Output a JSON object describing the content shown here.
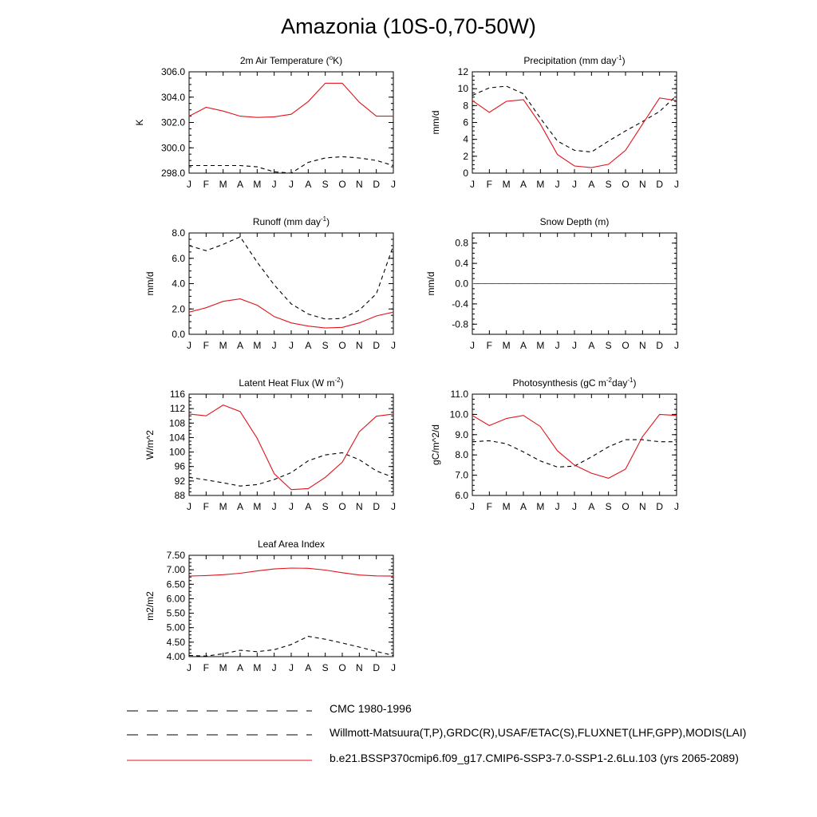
{
  "title": "Amazonia (10S-0,70-50W)",
  "colors": {
    "model": "#e0141c",
    "obs": "#000000",
    "obs_alt": "#3a55d8"
  },
  "legend": [
    {
      "label": "CMC 1980-1996",
      "style": "dashed",
      "color": "#000000"
    },
    {
      "label": "Willmott-Matsuura(T,P),GRDC(R),USAF/ETAC(S),FLUXNET(LHF,GPP),MODIS(LAI)",
      "style": "dashed",
      "color": "#000000"
    },
    {
      "label": "b.e21.BSSP370cmip6.f09_g17.CMIP6-SSP3-7.0-SSP1-2.6Lu.103 (yrs 2065-2089)",
      "style": "solid",
      "color": "#e0141c"
    }
  ],
  "chart_data": [
    {
      "type": "line",
      "title": "2m Air Temperature (°K)",
      "title_parts": [
        "2m Air Temperature (",
        "o",
        "K)"
      ],
      "ylabel": "K",
      "ylim": [
        298.0,
        306.0
      ],
      "yticks": [
        298.0,
        300.0,
        302.0,
        304.0,
        306.0
      ],
      "ytick_labels": [
        "298.0",
        "300.0",
        "302.0",
        "304.0",
        "306.0"
      ],
      "x": [
        "J",
        "F",
        "M",
        "A",
        "M",
        "J",
        "J",
        "A",
        "S",
        "O",
        "N",
        "D",
        "J"
      ],
      "series": [
        {
          "role": "model",
          "values": [
            302.5,
            303.2,
            302.9,
            302.5,
            302.4,
            302.45,
            302.65,
            303.65,
            305.1,
            305.1,
            303.6,
            302.5,
            302.5
          ]
        },
        {
          "role": "obs",
          "values": [
            298.6,
            298.6,
            298.6,
            298.6,
            298.5,
            298.1,
            298.0,
            298.85,
            299.2,
            299.3,
            299.2,
            299.0,
            298.6
          ]
        }
      ]
    },
    {
      "type": "line",
      "title": "Precipitation (mm day-1)",
      "title_parts": [
        "Precipitation (mm day",
        "-1",
        ")"
      ],
      "ylabel": "mm/d",
      "ylim": [
        0,
        12
      ],
      "yticks": [
        0,
        2,
        4,
        6,
        8,
        10,
        12
      ],
      "ytick_labels": [
        "0",
        "2",
        "4",
        "6",
        "8",
        "10",
        "12"
      ],
      "x": [
        "J",
        "F",
        "M",
        "A",
        "M",
        "J",
        "J",
        "A",
        "S",
        "O",
        "N",
        "D",
        "J"
      ],
      "series": [
        {
          "role": "model",
          "values": [
            8.6,
            7.2,
            8.5,
            8.7,
            5.8,
            2.2,
            0.85,
            0.65,
            1.05,
            2.7,
            5.8,
            8.9,
            8.6
          ]
        },
        {
          "role": "obs",
          "values": [
            9.2,
            10.1,
            10.3,
            9.4,
            6.5,
            3.8,
            2.7,
            2.5,
            3.8,
            5.0,
            6.1,
            7.3,
            9.2
          ]
        }
      ]
    },
    {
      "type": "line",
      "title": "Runoff (mm day-1)",
      "title_parts": [
        "Runoff (mm day",
        "-1",
        ")"
      ],
      "ylabel": "mm/d",
      "ylim": [
        0,
        8
      ],
      "yticks": [
        0,
        2,
        4,
        6,
        8
      ],
      "ytick_labels": [
        "0.0",
        "2.0",
        "4.0",
        "6.0",
        "8.0"
      ],
      "x": [
        "J",
        "F",
        "M",
        "A",
        "M",
        "J",
        "J",
        "A",
        "S",
        "O",
        "N",
        "D",
        "J"
      ],
      "series": [
        {
          "role": "model",
          "values": [
            1.75,
            2.1,
            2.6,
            2.8,
            2.3,
            1.4,
            0.9,
            0.65,
            0.5,
            0.55,
            0.9,
            1.45,
            1.75
          ]
        },
        {
          "role": "obs",
          "values": [
            7.0,
            6.6,
            7.1,
            7.7,
            5.7,
            3.9,
            2.4,
            1.6,
            1.2,
            1.25,
            1.9,
            3.2,
            7.0
          ]
        }
      ]
    },
    {
      "type": "line",
      "title": "Snow Depth (m)",
      "title_parts": [
        "Snow Depth (m)"
      ],
      "ylabel": "mm/d",
      "ylim": [
        -1.0,
        1.0
      ],
      "yticks": [
        -0.8,
        -0.4,
        0.0,
        0.4,
        0.8
      ],
      "ytick_labels": [
        "-0.8",
        "-0.4",
        "0.0",
        "0.4",
        "0.8"
      ],
      "x": [
        "J",
        "F",
        "M",
        "A",
        "M",
        "J",
        "J",
        "A",
        "S",
        "O",
        "N",
        "D",
        "J"
      ],
      "series": [
        {
          "role": "model",
          "values": [
            0,
            0,
            0,
            0,
            0,
            0,
            0,
            0,
            0,
            0,
            0,
            0,
            0
          ]
        },
        {
          "role": "obs_alt",
          "values": [
            0,
            0,
            0,
            0,
            0,
            0,
            0,
            0,
            0,
            0,
            0,
            0,
            0
          ]
        }
      ]
    },
    {
      "type": "line",
      "title": "Latent Heat Flux (W m-2)",
      "title_parts": [
        "Latent Heat Flux (W m",
        "-2",
        ")"
      ],
      "ylabel": "W/m^2",
      "ylim": [
        88,
        116
      ],
      "yticks": [
        88,
        92,
        96,
        100,
        104,
        108,
        112,
        116
      ],
      "ytick_labels": [
        "88",
        "92",
        "96",
        "100",
        "104",
        "108",
        "112",
        "116"
      ],
      "x": [
        "J",
        "F",
        "M",
        "A",
        "M",
        "J",
        "J",
        "A",
        "S",
        "O",
        "N",
        "D",
        "J"
      ],
      "series": [
        {
          "role": "model",
          "values": [
            110.5,
            110.0,
            113.0,
            111.2,
            103.8,
            94.0,
            89.6,
            89.9,
            93.0,
            97.2,
            105.6,
            109.9,
            110.5
          ]
        },
        {
          "role": "obs",
          "values": [
            93.0,
            92.3,
            91.5,
            90.6,
            91.0,
            92.4,
            94.3,
            97.6,
            99.2,
            99.8,
            97.9,
            94.8,
            93.0
          ]
        }
      ]
    },
    {
      "type": "line",
      "title": "Photosynthesis (gC m-2day-1)",
      "title_parts": [
        "Photosynthesis (gC m",
        "-2",
        "day",
        "-1",
        ")"
      ],
      "ylabel": "gC/m^2/d",
      "ylim": [
        6.0,
        11.0
      ],
      "yticks": [
        6.0,
        7.0,
        8.0,
        9.0,
        10.0,
        11.0
      ],
      "ytick_labels": [
        "6.0",
        "7.0",
        "8.0",
        "9.0",
        "10.0",
        "11.0"
      ],
      "x": [
        "J",
        "F",
        "M",
        "A",
        "M",
        "J",
        "J",
        "A",
        "S",
        "O",
        "N",
        "D",
        "J"
      ],
      "series": [
        {
          "role": "model",
          "values": [
            9.95,
            9.45,
            9.8,
            9.95,
            9.4,
            8.2,
            7.5,
            7.1,
            6.85,
            7.3,
            8.9,
            10.0,
            9.95
          ]
        },
        {
          "role": "obs",
          "values": [
            8.65,
            8.7,
            8.55,
            8.15,
            7.7,
            7.4,
            7.45,
            7.9,
            8.4,
            8.75,
            8.75,
            8.65,
            8.65
          ]
        }
      ]
    },
    {
      "type": "line",
      "title": "Leaf Area Index",
      "title_parts": [
        "Leaf Area Index"
      ],
      "ylabel": "m2/m2",
      "ylim": [
        4.0,
        7.5
      ],
      "yticks": [
        4.0,
        4.5,
        5.0,
        5.5,
        6.0,
        6.5,
        7.0,
        7.5
      ],
      "ytick_labels": [
        "4.00",
        "4.50",
        "5.00",
        "5.50",
        "6.00",
        "6.50",
        "7.00",
        "7.50"
      ],
      "x": [
        "J",
        "F",
        "M",
        "A",
        "M",
        "J",
        "J",
        "A",
        "S",
        "O",
        "N",
        "D",
        "J"
      ],
      "series": [
        {
          "role": "model",
          "values": [
            6.78,
            6.8,
            6.83,
            6.88,
            6.96,
            7.03,
            7.06,
            7.05,
            6.99,
            6.9,
            6.82,
            6.79,
            6.78
          ]
        },
        {
          "role": "obs",
          "values": [
            4.04,
            4.02,
            4.1,
            4.22,
            4.17,
            4.24,
            4.42,
            4.7,
            4.6,
            4.47,
            4.33,
            4.18,
            4.04
          ]
        }
      ]
    }
  ]
}
